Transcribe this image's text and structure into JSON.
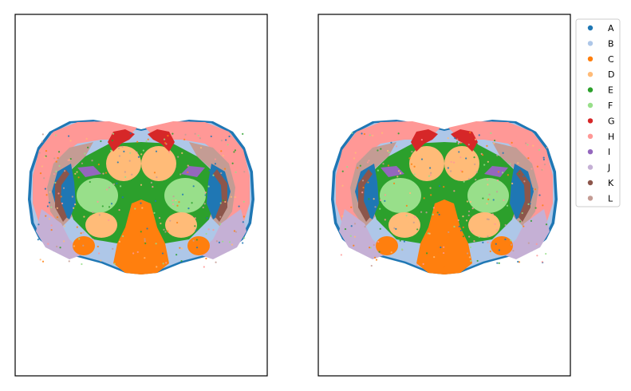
{
  "chart_data": {
    "type": "scatter",
    "description_panels": [
      "left",
      "right"
    ],
    "legend": {
      "placement": "outside-right",
      "entries": [
        {
          "label": "A",
          "color": "#1f77b4"
        },
        {
          "label": "B",
          "color": "#aec7e8"
        },
        {
          "label": "C",
          "color": "#ff7f0e"
        },
        {
          "label": "D",
          "color": "#ffbb78"
        },
        {
          "label": "E",
          "color": "#2ca02c"
        },
        {
          "label": "F",
          "color": "#98df8a"
        },
        {
          "label": "G",
          "color": "#d62728"
        },
        {
          "label": "H",
          "color": "#ff9896"
        },
        {
          "label": "I",
          "color": "#9467bd"
        },
        {
          "label": "J",
          "color": "#c5b0d5"
        },
        {
          "label": "K",
          "color": "#8c564b"
        },
        {
          "label": "L",
          "color": "#c49c94"
        }
      ]
    },
    "axes": {
      "ticks_visible": false,
      "grid": false
    }
  }
}
